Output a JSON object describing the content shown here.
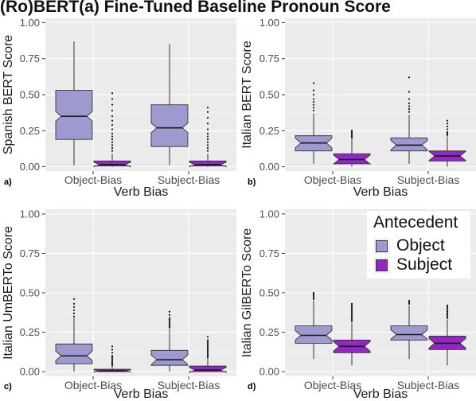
{
  "title": "(Ro)BERT(a) Fine-Tuned Baseline Pronoun Score",
  "legend": {
    "title": "Antecedent",
    "entries": [
      {
        "name": "Object",
        "color": "#9d9ad0"
      },
      {
        "name": "Subject",
        "color": "#9327c6"
      }
    ]
  },
  "chart_data": [
    {
      "type": "box",
      "tag": "a)",
      "xlabel": "Verb Bias",
      "ylabel": "Spanish BERT Score",
      "ylim": [
        -0.03,
        1.03
      ],
      "yticks": [
        "0.00",
        "0.25",
        "0.50",
        "0.75",
        "1.00"
      ],
      "categories": [
        "Object-Bias",
        "Subject-Bias"
      ],
      "series": [
        {
          "name": "Object",
          "boxes": [
            {
              "whisker_low": 0.01,
              "q1": 0.19,
              "median": 0.35,
              "q3": 0.53,
              "whisker_high": 0.87,
              "outliers": []
            },
            {
              "whisker_low": 0.01,
              "q1": 0.14,
              "median": 0.27,
              "q3": 0.43,
              "whisker_high": 0.85,
              "outliers": []
            }
          ]
        },
        {
          "name": "Subject",
          "boxes": [
            {
              "whisker_low": 0.0,
              "q1": 0.005,
              "median": 0.015,
              "q3": 0.04,
              "whisker_high": 0.09,
              "outliers": [
                0.11,
                0.13,
                0.15,
                0.17,
                0.19,
                0.21,
                0.23,
                0.26,
                0.29,
                0.32,
                0.35,
                0.39,
                0.43,
                0.47,
                0.51
              ]
            },
            {
              "whisker_low": 0.0,
              "q1": 0.005,
              "median": 0.015,
              "q3": 0.04,
              "whisker_high": 0.09,
              "outliers": [
                0.11,
                0.13,
                0.15,
                0.17,
                0.19,
                0.21,
                0.23,
                0.26,
                0.3,
                0.34,
                0.38,
                0.41
              ]
            }
          ]
        }
      ]
    },
    {
      "type": "box",
      "tag": "b)",
      "xlabel": "Verb Bias",
      "ylabel": "Italian BERT Score",
      "ylim": [
        -0.03,
        1.03
      ],
      "yticks": [
        "0.00",
        "0.25",
        "0.50",
        "0.75",
        "1.00"
      ],
      "categories": [
        "Object-Bias",
        "Subject-Bias"
      ],
      "series": [
        {
          "name": "Object",
          "boxes": [
            {
              "whisker_low": 0.02,
              "q1": 0.11,
              "median": 0.165,
              "q3": 0.215,
              "whisker_high": 0.37,
              "outliers": [
                0.39,
                0.41,
                0.43,
                0.45,
                0.47,
                0.5,
                0.53,
                0.58
              ]
            },
            {
              "whisker_low": 0.02,
              "q1": 0.11,
              "median": 0.15,
              "q3": 0.2,
              "whisker_high": 0.36,
              "outliers": [
                0.38,
                0.4,
                0.42,
                0.44,
                0.47,
                0.52,
                0.62
              ]
            }
          ]
        },
        {
          "name": "Subject",
          "boxes": [
            {
              "whisker_low": 0.0,
              "q1": 0.02,
              "median": 0.05,
              "q3": 0.09,
              "whisker_high": 0.19,
              "outliers": [
                0.2,
                0.21,
                0.22,
                0.23,
                0.24,
                0.25
              ]
            },
            {
              "whisker_low": 0.0,
              "q1": 0.04,
              "median": 0.075,
              "q3": 0.11,
              "whisker_high": 0.21,
              "outliers": [
                0.22,
                0.23,
                0.24,
                0.26,
                0.28,
                0.3,
                0.32
              ]
            }
          ]
        }
      ]
    },
    {
      "type": "box",
      "tag": "c)",
      "xlabel": "Verb Bias",
      "ylabel": "Italian UmBERTo Score",
      "ylim": [
        -0.03,
        1.03
      ],
      "yticks": [
        "0.00",
        "0.25",
        "0.50",
        "0.75",
        "1.00"
      ],
      "categories": [
        "Object-Bias",
        "Subject-Bias"
      ],
      "series": [
        {
          "name": "Object",
          "boxes": [
            {
              "whisker_low": 0.0,
              "q1": 0.05,
              "median": 0.1,
              "q3": 0.175,
              "whisker_high": 0.34,
              "outliers": [
                0.35,
                0.37,
                0.39,
                0.41,
                0.43,
                0.46
              ]
            },
            {
              "whisker_low": 0.0,
              "q1": 0.04,
              "median": 0.075,
              "q3": 0.135,
              "whisker_high": 0.27,
              "outliers": [
                0.28,
                0.29,
                0.3,
                0.31,
                0.32,
                0.33,
                0.34,
                0.36,
                0.38
              ]
            }
          ]
        },
        {
          "name": "Subject",
          "boxes": [
            {
              "whisker_low": 0.0,
              "q1": 0.0,
              "median": 0.005,
              "q3": 0.015,
              "whisker_high": 0.035,
              "outliers": [
                0.04,
                0.05,
                0.06,
                0.07,
                0.08,
                0.09,
                0.1,
                0.12,
                0.14,
                0.16
              ]
            },
            {
              "whisker_low": 0.0,
              "q1": 0.0,
              "median": 0.01,
              "q3": 0.035,
              "whisker_high": 0.085,
              "outliers": [
                0.09,
                0.1,
                0.11,
                0.12,
                0.13,
                0.14,
                0.15,
                0.16,
                0.17,
                0.18,
                0.19,
                0.2,
                0.22
              ]
            }
          ]
        }
      ]
    },
    {
      "type": "box",
      "tag": "d)",
      "xlabel": "Verb Bias",
      "ylabel": "Italian GilBERTo Score",
      "ylim": [
        -0.03,
        1.03
      ],
      "yticks": [
        "0.00",
        "0.25",
        "0.50",
        "0.75",
        "1.00"
      ],
      "categories": [
        "Object-Bias",
        "Subject-Bias"
      ],
      "series": [
        {
          "name": "Object",
          "boxes": [
            {
              "whisker_low": 0.08,
              "q1": 0.18,
              "median": 0.23,
              "q3": 0.29,
              "whisker_high": 0.45,
              "outliers": [
                0.46,
                0.47,
                0.48,
                0.49,
                0.5
              ]
            },
            {
              "whisker_low": 0.08,
              "q1": 0.2,
              "median": 0.235,
              "q3": 0.29,
              "whisker_high": 0.42,
              "outliers": [
                0.43,
                0.44,
                0.45
              ]
            }
          ]
        },
        {
          "name": "Subject",
          "boxes": [
            {
              "whisker_low": 0.04,
              "q1": 0.12,
              "median": 0.16,
              "q3": 0.2,
              "whisker_high": 0.31,
              "outliers": [
                0.32,
                0.33,
                0.34,
                0.35,
                0.36,
                0.37,
                0.38,
                0.39,
                0.4,
                0.41,
                0.42,
                0.43
              ]
            },
            {
              "whisker_low": 0.04,
              "q1": 0.14,
              "median": 0.18,
              "q3": 0.225,
              "whisker_high": 0.33,
              "outliers": [
                0.34,
                0.35,
                0.36,
                0.37,
                0.38,
                0.39,
                0.4,
                0.41,
                0.42
              ]
            }
          ]
        }
      ]
    }
  ]
}
